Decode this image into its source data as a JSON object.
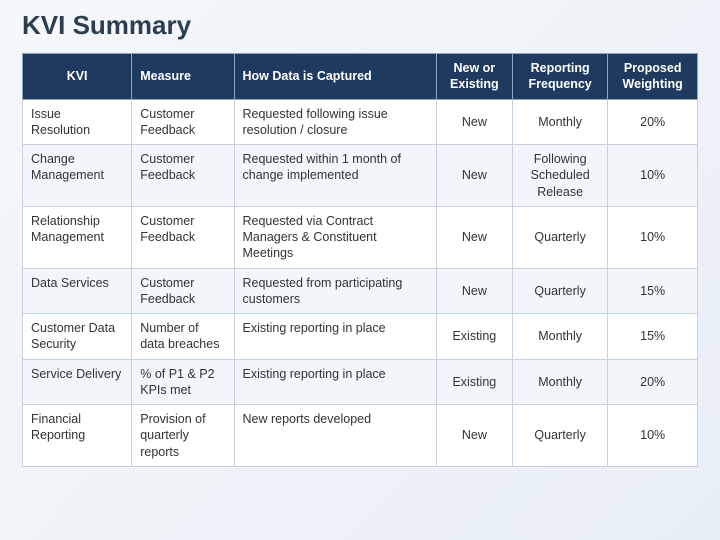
{
  "title": "KVI Summary",
  "table": {
    "columns": [
      {
        "label": "KVI",
        "class": "col-kvi"
      },
      {
        "label": "Measure",
        "class": "col-measure"
      },
      {
        "label": "How Data is Captured",
        "class": "col-capture"
      },
      {
        "label": "New or Existing",
        "class": "col-new"
      },
      {
        "label": "Reporting Frequency",
        "class": "col-freq"
      },
      {
        "label": "Proposed Weighting",
        "class": "col-weight"
      }
    ],
    "rows": [
      {
        "kvi": "Issue Resolution",
        "measure": "Customer Feedback",
        "capture": "Requested following issue resolution / closure",
        "new": "New",
        "freq": "Monthly",
        "weight": "20%"
      },
      {
        "kvi": "Change Management",
        "measure": "Customer Feedback",
        "capture": "Requested within 1 month of change implemented",
        "new": "New",
        "freq": "Following Scheduled Release",
        "weight": "10%"
      },
      {
        "kvi": "Relationship Management",
        "measure": "Customer Feedback",
        "capture": "Requested via Contract Managers & Constituent Meetings",
        "new": "New",
        "freq": "Quarterly",
        "weight": "10%"
      },
      {
        "kvi": "Data Services",
        "measure": "Customer Feedback",
        "capture": "Requested from participating customers",
        "new": "New",
        "freq": "Quarterly",
        "weight": "15%"
      },
      {
        "kvi": "Customer Data Security",
        "measure": "Number of data breaches",
        "capture": "Existing reporting in place",
        "new": "Existing",
        "freq": "Monthly",
        "weight": "15%"
      },
      {
        "kvi": "Service Delivery",
        "measure": "% of P1 & P2 KPIs met",
        "capture": "Existing reporting in place",
        "new": "Existing",
        "freq": "Monthly",
        "weight": "20%"
      },
      {
        "kvi": "Financial Reporting",
        "measure": "Provision of quarterly reports",
        "capture": "New reports developed",
        "new": "New",
        "freq": "Quarterly",
        "weight": "10%"
      }
    ]
  },
  "styling": {
    "header_bg": "#1f3a5f",
    "header_fg": "#ffffff",
    "row_alt_bg": "#f2f6fa",
    "border_color": "#c5d2e0",
    "title_color": "#2c3e50",
    "title_fontsize": 26,
    "body_fontsize": 12.5
  }
}
